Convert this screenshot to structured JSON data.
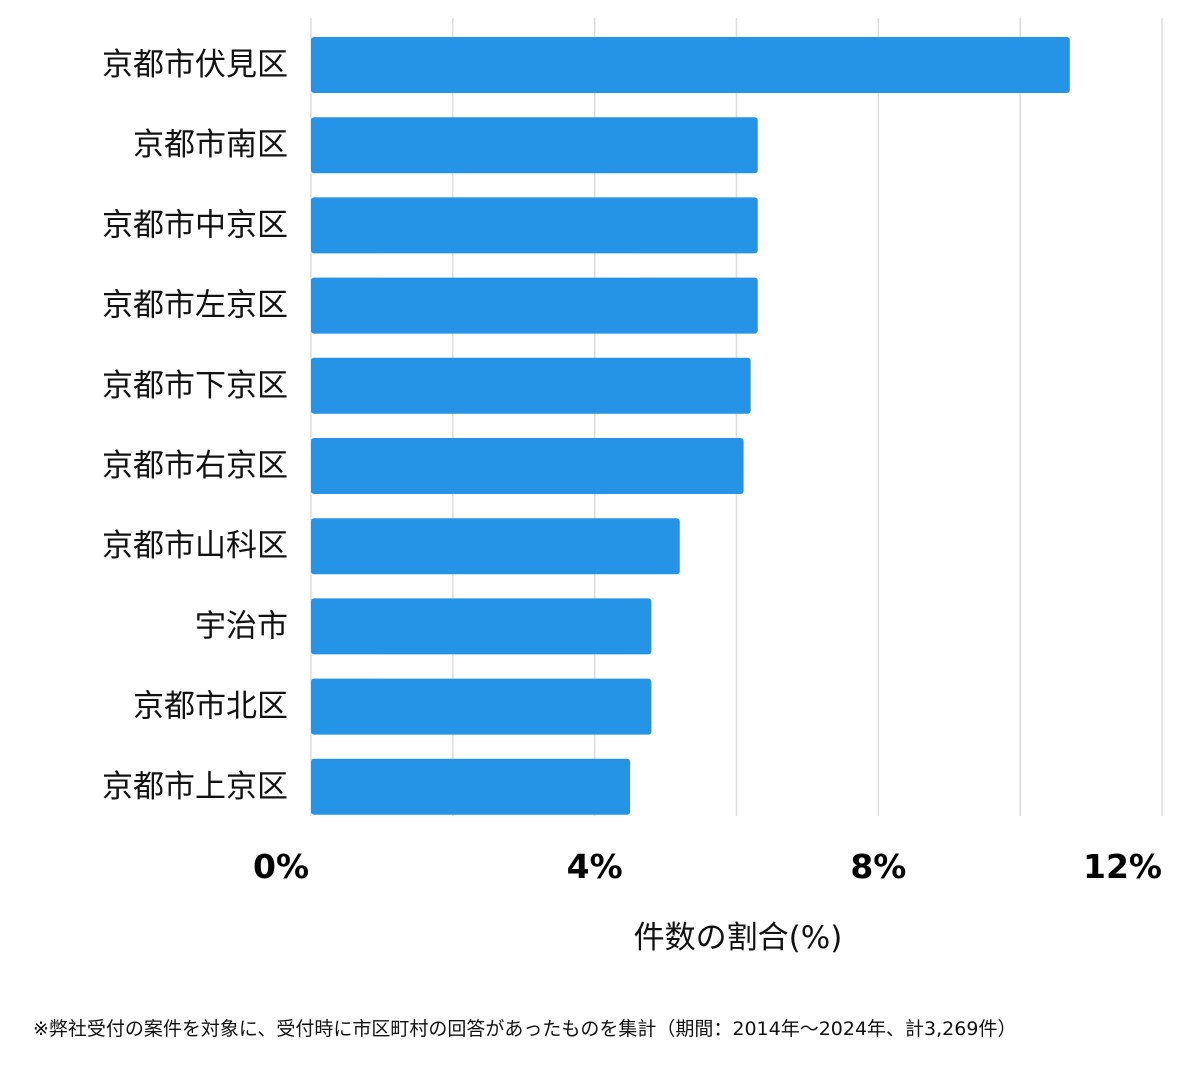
{
  "chart_data": {
    "type": "bar",
    "orientation": "horizontal",
    "categories": [
      "京都市伏見区",
      "京都市南区",
      "京都市中京区",
      "京都市左京区",
      "京都市下京区",
      "京都市右京区",
      "京都市山科区",
      "宇治市",
      "京都市北区",
      "京都市上京区"
    ],
    "values": [
      10.7,
      6.3,
      6.3,
      6.3,
      6.2,
      6.1,
      5.2,
      4.8,
      4.8,
      4.5
    ],
    "xlabel": "件数の割合(%)",
    "ylabel": "",
    "xlim": [
      0,
      12
    ],
    "xticks": [
      {
        "value": 0,
        "label": "0%"
      },
      {
        "value": 4,
        "label": "4%"
      },
      {
        "value": 8,
        "label": "8%"
      },
      {
        "value": 12,
        "label": "12%"
      }
    ],
    "gridlines": [
      0,
      2,
      4,
      6,
      8,
      10,
      12
    ],
    "grid": true,
    "bar_color": "#2694e6",
    "grid_color": "#dddddd"
  },
  "footnote": "※弊社受付の案件を対象に、受付時に市区町村の回答があったものを集計（期間：2014年〜2024年、計3,269件）"
}
